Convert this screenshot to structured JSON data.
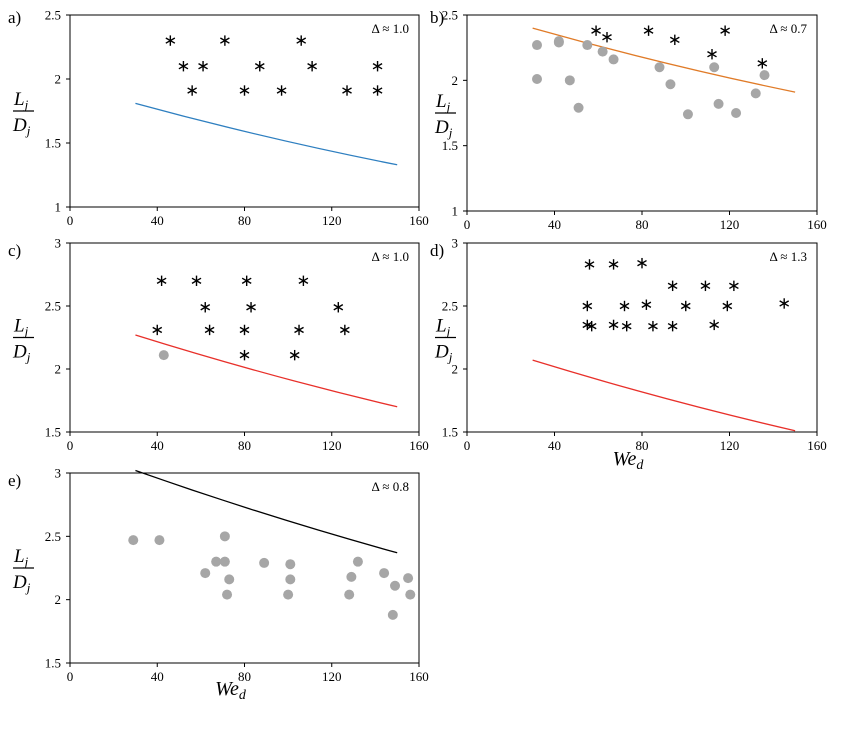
{
  "chart_data": [
    {
      "panel": "a)",
      "type": "scatter",
      "annotation": "Δ ≈ 1.0",
      "xlim": [
        0,
        160
      ],
      "ylim": [
        1,
        2.5
      ],
      "xticks": [
        "0",
        "40",
        "80",
        "120",
        "160"
      ],
      "yticks": [
        "1",
        "1.5",
        "2",
        "2.5"
      ],
      "xlabel": "",
      "ylabel": "Lj/Dj",
      "line": {
        "color": "#2e7fc0",
        "x": [
          30,
          150
        ],
        "y": [
          1.81,
          1.33
        ]
      },
      "stars": [
        [
          46,
          2.3
        ],
        [
          71,
          2.3
        ],
        [
          106,
          2.3
        ],
        [
          52,
          2.1
        ],
        [
          61,
          2.1
        ],
        [
          87,
          2.1
        ],
        [
          111,
          2.1
        ],
        [
          141,
          2.1
        ],
        [
          56,
          1.91
        ],
        [
          80,
          1.91
        ],
        [
          97,
          1.91
        ],
        [
          127,
          1.91
        ],
        [
          141,
          1.91
        ]
      ],
      "dots": []
    },
    {
      "panel": "b)",
      "type": "scatter",
      "annotation": "Δ ≈ 0.7",
      "xlim": [
        0,
        160
      ],
      "ylim": [
        1,
        2.5
      ],
      "xticks": [
        "0",
        "40",
        "80",
        "120",
        "160"
      ],
      "yticks": [
        "1",
        "1.5",
        "2",
        "2.5"
      ],
      "xlabel": "",
      "ylabel": "Lj/Dj",
      "line": {
        "color": "#e07b28",
        "x": [
          30,
          150
        ],
        "y": [
          2.4,
          1.91
        ]
      },
      "stars": [
        [
          59,
          2.38
        ],
        [
          64,
          2.33
        ],
        [
          83,
          2.38
        ],
        [
          95,
          2.31
        ],
        [
          112,
          2.2
        ],
        [
          118,
          2.38
        ],
        [
          135,
          2.13
        ]
      ],
      "dots": [
        [
          32,
          2.27
        ],
        [
          32,
          2.01
        ],
        [
          42,
          2.29
        ],
        [
          42,
          2.3
        ],
        [
          47,
          2.0
        ],
        [
          51,
          1.79
        ],
        [
          55,
          2.27
        ],
        [
          62,
          2.22
        ],
        [
          67,
          2.16
        ],
        [
          88,
          2.1
        ],
        [
          93,
          1.97
        ],
        [
          101,
          1.74
        ],
        [
          113,
          2.1
        ],
        [
          115,
          1.82
        ],
        [
          123,
          1.75
        ],
        [
          132,
          1.9
        ],
        [
          136,
          2.04
        ]
      ]
    },
    {
      "panel": "c)",
      "type": "scatter",
      "annotation": "Δ ≈ 1.0",
      "xlim": [
        0,
        160
      ],
      "ylim": [
        1.5,
        3
      ],
      "xticks": [
        "0",
        "40",
        "80",
        "120",
        "160"
      ],
      "yticks": [
        "1.5",
        "2",
        "2.5",
        "3"
      ],
      "xlabel": "",
      "ylabel": "Lj/Dj",
      "line": {
        "color": "#e8302a",
        "x": [
          30,
          150
        ],
        "y": [
          2.27,
          1.7
        ]
      },
      "stars": [
        [
          42,
          2.7
        ],
        [
          58,
          2.7
        ],
        [
          81,
          2.7
        ],
        [
          107,
          2.7
        ],
        [
          62,
          2.49
        ],
        [
          83,
          2.49
        ],
        [
          123,
          2.49
        ],
        [
          40,
          2.31
        ],
        [
          64,
          2.31
        ],
        [
          80,
          2.31
        ],
        [
          105,
          2.31
        ],
        [
          126,
          2.31
        ],
        [
          80,
          2.11
        ],
        [
          103,
          2.11
        ]
      ],
      "dots": [
        [
          43,
          2.11
        ]
      ]
    },
    {
      "panel": "d)",
      "type": "scatter",
      "annotation": "Δ ≈ 1.3",
      "xlim": [
        0,
        160
      ],
      "ylim": [
        1.5,
        3
      ],
      "xticks": [
        "0",
        "40",
        "80",
        "120",
        "160"
      ],
      "yticks": [
        "1.5",
        "2",
        "2.5",
        "3"
      ],
      "xlabel": "Wed",
      "ylabel": "Lj/Dj",
      "line": {
        "color": "#e8302a",
        "x": [
          30,
          150
        ],
        "y": [
          2.07,
          1.51
        ]
      },
      "stars": [
        [
          56,
          2.83
        ],
        [
          67,
          2.83
        ],
        [
          80,
          2.84
        ],
        [
          55,
          2.5
        ],
        [
          72,
          2.5
        ],
        [
          82,
          2.51
        ],
        [
          100,
          2.5
        ],
        [
          119,
          2.5
        ],
        [
          145,
          2.52
        ],
        [
          94,
          2.66
        ],
        [
          109,
          2.66
        ],
        [
          122,
          2.66
        ],
        [
          55,
          2.35
        ],
        [
          57,
          2.34
        ],
        [
          67,
          2.35
        ],
        [
          73,
          2.34
        ],
        [
          85,
          2.34
        ],
        [
          94,
          2.34
        ],
        [
          113,
          2.35
        ]
      ],
      "dots": []
    },
    {
      "panel": "e)",
      "type": "scatter",
      "annotation": "Δ ≈ 0.8",
      "xlim": [
        0,
        160
      ],
      "ylim": [
        1.5,
        3
      ],
      "xticks": [
        "0",
        "40",
        "80",
        "120",
        "160"
      ],
      "yticks": [
        "1.5",
        "2",
        "2.5",
        "3"
      ],
      "xlabel": "Wed",
      "ylabel": "Lj/Dj",
      "line": {
        "color": "#000000",
        "x": [
          30,
          150
        ],
        "y": [
          3.02,
          2.37
        ]
      },
      "stars": [],
      "dots": [
        [
          29,
          2.47
        ],
        [
          41,
          2.47
        ],
        [
          62,
          2.21
        ],
        [
          67,
          2.3
        ],
        [
          71,
          2.5
        ],
        [
          71,
          2.3
        ],
        [
          72,
          2.04
        ],
        [
          73,
          2.16
        ],
        [
          89,
          2.29
        ],
        [
          100,
          2.04
        ],
        [
          101,
          2.28
        ],
        [
          101,
          2.16
        ],
        [
          128,
          2.04
        ],
        [
          129,
          2.18
        ],
        [
          132,
          2.3
        ],
        [
          144,
          2.21
        ],
        [
          148,
          1.88
        ],
        [
          149,
          2.11
        ],
        [
          155,
          2.17
        ],
        [
          156,
          2.04
        ]
      ]
    }
  ]
}
